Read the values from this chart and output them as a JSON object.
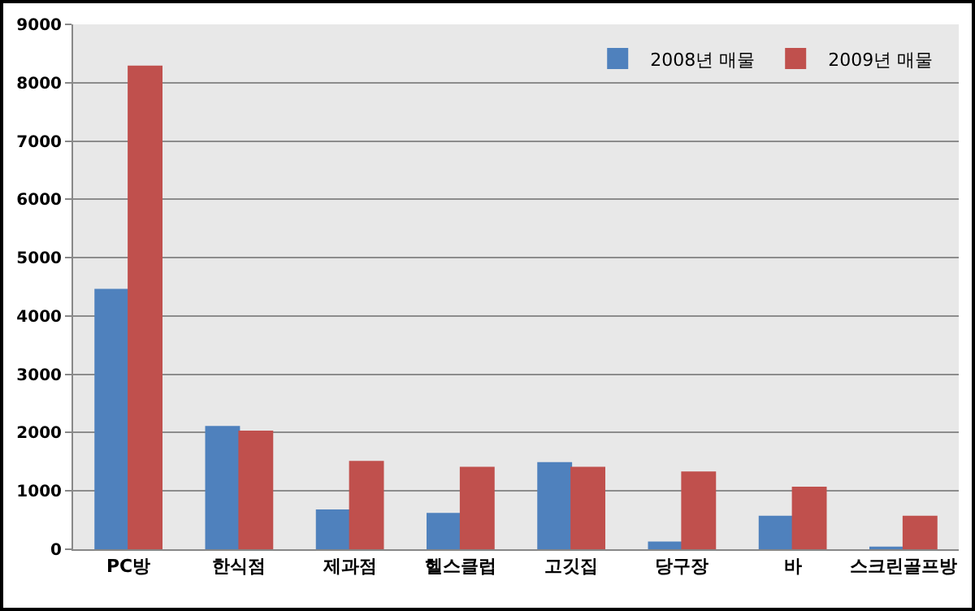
{
  "chart_data": {
    "type": "bar",
    "categories": [
      "PC방",
      "한식점",
      "제과점",
      "헬스클럽",
      "고깃집",
      "당구장",
      "바",
      "스크린골프방"
    ],
    "series": [
      {
        "name": "2008년 매물",
        "color": "#4f81bd",
        "values": [
          4450,
          2100,
          670,
          610,
          1480,
          120,
          560,
          30
        ]
      },
      {
        "name": "2009년 매물",
        "color": "#c0504d",
        "values": [
          8280,
          2020,
          1500,
          1400,
          1400,
          1320,
          1060,
          560
        ]
      }
    ],
    "ylim": [
      0,
      9000
    ],
    "yticks": [
      0,
      1000,
      2000,
      3000,
      4000,
      5000,
      6000,
      7000,
      8000,
      9000
    ],
    "grid": "y",
    "legend": "top right"
  }
}
